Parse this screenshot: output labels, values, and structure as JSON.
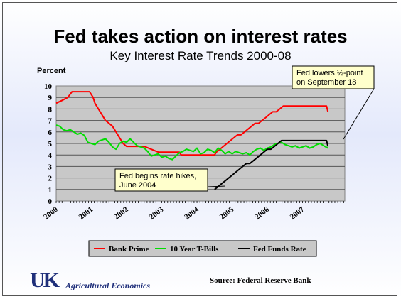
{
  "slide": {
    "title": "Fed takes action on interest rates",
    "source": "Source: Federal Reserve Bank",
    "logo": {
      "letters": "UK",
      "text": "Agricultural Economics"
    }
  },
  "chart_data": {
    "type": "line",
    "title": "Key Interest Rate Trends 2000-08",
    "ylabel": "Percent",
    "ylim": [
      0,
      10
    ],
    "yticks": [
      0,
      1,
      2,
      3,
      4,
      5,
      6,
      7,
      8,
      9,
      10
    ],
    "xlim": [
      2000,
      2008.2
    ],
    "xticks": [
      "2000",
      "2001",
      "2002",
      "2003",
      "2004",
      "2005",
      "2006",
      "2007"
    ],
    "grid": "horizontal",
    "legend_position": "bottom",
    "series": [
      {
        "name": "Bank Prime",
        "color": "#ff0000",
        "x": [
          2000.0,
          2000.17,
          2000.33,
          2000.45,
          2000.6,
          2000.8,
          2000.95,
          2001.05,
          2001.1,
          2001.2,
          2001.3,
          2001.4,
          2001.5,
          2001.6,
          2001.7,
          2001.8,
          2001.9,
          2002.0,
          2002.5,
          2002.9,
          2003.0,
          2003.5,
          2003.55,
          2004.5,
          2004.55,
          2004.65,
          2004.75,
          2004.85,
          2004.95,
          2005.05,
          2005.15,
          2005.25,
          2005.35,
          2005.45,
          2005.55,
          2005.65,
          2005.75,
          2005.85,
          2005.95,
          2006.05,
          2006.15,
          2006.25,
          2006.35,
          2006.45,
          2006.55,
          2006.7,
          2007.0,
          2007.5,
          2007.68,
          2007.72
        ],
        "y": [
          8.5,
          8.75,
          9.0,
          9.5,
          9.5,
          9.5,
          9.5,
          9.0,
          8.5,
          8.0,
          7.5,
          7.0,
          6.75,
          6.5,
          6.0,
          5.5,
          5.0,
          4.75,
          4.75,
          4.25,
          4.25,
          4.25,
          4.0,
          4.0,
          4.25,
          4.5,
          4.75,
          5.0,
          5.25,
          5.5,
          5.75,
          5.75,
          6.0,
          6.25,
          6.5,
          6.75,
          6.75,
          7.0,
          7.25,
          7.5,
          7.75,
          7.75,
          8.0,
          8.25,
          8.25,
          8.25,
          8.25,
          8.25,
          8.25,
          7.75
        ]
      },
      {
        "name": "10 Year T-Bills",
        "color": "#00dd00",
        "x": [
          2000.0,
          2000.1,
          2000.2,
          2000.3,
          2000.4,
          2000.5,
          2000.6,
          2000.7,
          2000.8,
          2000.9,
          2001.0,
          2001.1,
          2001.2,
          2001.3,
          2001.4,
          2001.5,
          2001.6,
          2001.7,
          2001.8,
          2001.9,
          2002.0,
          2002.1,
          2002.2,
          2002.3,
          2002.4,
          2002.5,
          2002.6,
          2002.7,
          2002.8,
          2002.9,
          2003.0,
          2003.1,
          2003.2,
          2003.3,
          2003.4,
          2003.5,
          2003.6,
          2003.7,
          2003.8,
          2003.9,
          2004.0,
          2004.1,
          2004.2,
          2004.3,
          2004.4,
          2004.5,
          2004.6,
          2004.7,
          2004.8,
          2004.9,
          2005.0,
          2005.1,
          2005.2,
          2005.3,
          2005.4,
          2005.5,
          2005.6,
          2005.7,
          2005.8,
          2005.9,
          2006.0,
          2006.1,
          2006.2,
          2006.3,
          2006.4,
          2006.5,
          2006.6,
          2006.7,
          2006.8,
          2006.9,
          2007.0,
          2007.1,
          2007.2,
          2007.3,
          2007.4,
          2007.5,
          2007.6,
          2007.72
        ],
        "y": [
          6.6,
          6.5,
          6.2,
          6.1,
          6.2,
          6.0,
          5.8,
          5.9,
          5.7,
          5.1,
          5.0,
          4.9,
          5.2,
          5.3,
          5.4,
          5.1,
          4.7,
          4.5,
          5.0,
          5.2,
          5.1,
          5.4,
          5.1,
          4.8,
          4.7,
          4.6,
          4.3,
          3.9,
          4.0,
          4.1,
          3.8,
          3.9,
          3.7,
          3.6,
          3.9,
          4.2,
          4.3,
          4.5,
          4.4,
          4.3,
          4.6,
          4.1,
          4.2,
          4.5,
          4.4,
          4.2,
          4.6,
          4.4,
          4.1,
          4.3,
          4.1,
          4.3,
          4.2,
          4.1,
          4.2,
          4.0,
          4.3,
          4.5,
          4.6,
          4.4,
          4.6,
          4.7,
          4.9,
          5.0,
          5.1,
          4.9,
          4.8,
          4.7,
          4.8,
          4.6,
          4.7,
          4.8,
          4.6,
          4.7,
          4.9,
          5.0,
          4.8,
          4.6
        ]
      },
      {
        "name": "Fed Funds Rate",
        "color": "#000000",
        "x": [
          2004.5,
          2004.6,
          2004.7,
          2004.8,
          2004.9,
          2005.0,
          2005.1,
          2005.2,
          2005.3,
          2005.4,
          2005.5,
          2005.6,
          2005.7,
          2005.8,
          2005.9,
          2006.0,
          2006.1,
          2006.2,
          2006.3,
          2006.4,
          2006.5,
          2007.0,
          2007.5,
          2007.68,
          2007.72
        ],
        "y": [
          1.0,
          1.25,
          1.5,
          1.75,
          2.0,
          2.25,
          2.5,
          2.75,
          3.0,
          3.25,
          3.25,
          3.5,
          3.75,
          4.0,
          4.25,
          4.5,
          4.5,
          4.75,
          5.0,
          5.25,
          5.25,
          5.25,
          5.25,
          5.25,
          4.75
        ]
      }
    ],
    "annotations": [
      {
        "text_lines": [
          "Fed lowers ½-point",
          "on September 18"
        ],
        "x": 2007.72,
        "y": 8.25
      },
      {
        "text_lines": [
          "Fed begins rate hikes,",
          "June 2004"
        ],
        "x": 2004.5,
        "y": 1.0
      }
    ]
  }
}
